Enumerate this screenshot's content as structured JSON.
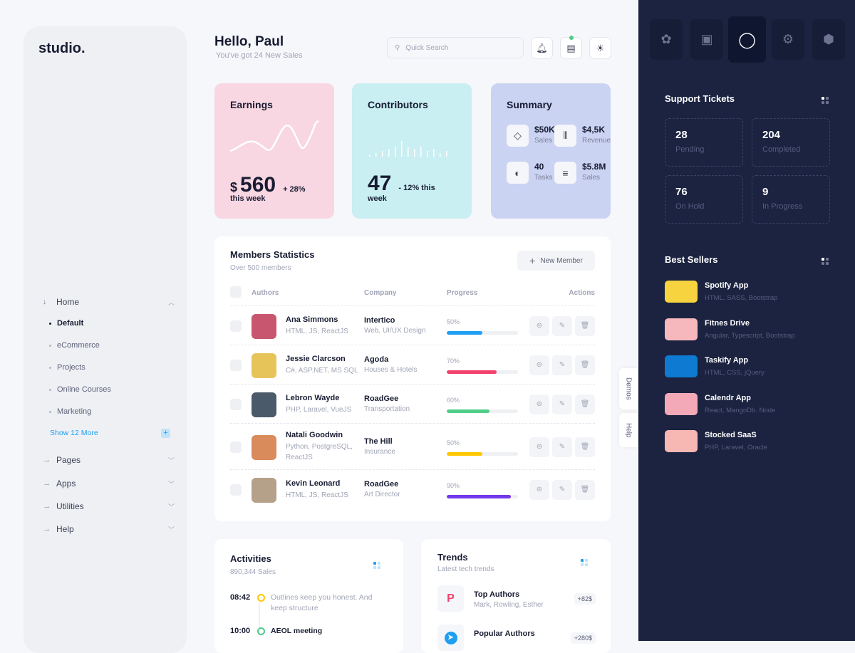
{
  "brand": "studio.",
  "sidebar": {
    "home": "Home",
    "sub": [
      "Default",
      "eCommerce",
      "Projects",
      "Online Courses",
      "Marketing"
    ],
    "show_more": "Show 12 More",
    "items": [
      "Pages",
      "Apps",
      "Utilities",
      "Help"
    ]
  },
  "header": {
    "greeting": "Hello, Paul",
    "subtitle": "You've got 24 New Sales",
    "search_placeholder": "Quick Search"
  },
  "earnings": {
    "title": "Earnings",
    "currency": "$",
    "value": "560",
    "change": "+ 28%",
    "period": "this week"
  },
  "contributors": {
    "title": "Contributors",
    "value": "47",
    "change": "- 12% this",
    "period": "week"
  },
  "summary": {
    "title": "Summary",
    "items": [
      {
        "value": "$50K",
        "label": "Sales"
      },
      {
        "value": "$4,5K",
        "label": "Revenue"
      },
      {
        "value": "40",
        "label": "Tasks"
      },
      {
        "value": "$5.8M",
        "label": "Sales"
      }
    ]
  },
  "members": {
    "title": "Members Statistics",
    "subtitle": "Over 500 members",
    "new_button": "New Member",
    "columns": [
      "Authors",
      "Company",
      "Progress",
      "Actions"
    ],
    "rows": [
      {
        "name": "Ana Simmons",
        "skills": "HTML, JS, ReactJS",
        "company": "Intertico",
        "company_sub": "Web, UI/UX Design",
        "progress": "50%",
        "value": 50,
        "color": "#1e9ff2"
      },
      {
        "name": "Jessie Clarcson",
        "skills": "C#, ASP.NET, MS SQL",
        "company": "Agoda",
        "company_sub": "Houses & Hotels",
        "progress": "70%",
        "value": 70,
        "color": "#f1416c"
      },
      {
        "name": "Lebron Wayde",
        "skills": "PHP, Laravel, VueJS",
        "company": "RoadGee",
        "company_sub": "Transportation",
        "progress": "60%",
        "value": 60,
        "color": "#50cd89"
      },
      {
        "name": "Natali Goodwin",
        "skills": "Python, PostgreSQL, ReactJS",
        "company": "The Hill",
        "company_sub": "Insurance",
        "progress": "50%",
        "value": 50,
        "color": "#ffc700"
      },
      {
        "name": "Kevin Leonard",
        "skills": "HTML, JS, ReactJS",
        "company": "RoadGee",
        "company_sub": "Art Director",
        "progress": "90%",
        "value": 90,
        "color": "#7239ea"
      }
    ]
  },
  "activities": {
    "title": "Activities",
    "subtitle": "890,344 Sales",
    "items": [
      {
        "time": "08:42",
        "text": "Outlines keep you honest. And keep structure",
        "color": "#ffc700"
      },
      {
        "time": "10:00",
        "text": "AEOL meeting",
        "color": "#50cd89"
      }
    ]
  },
  "trends": {
    "title": "Trends",
    "subtitle": "Latest tech trends",
    "items": [
      {
        "title": "Top Authors",
        "sub": "Mark, Rowling, Esther",
        "badge": "+82$"
      },
      {
        "title": "Popular Authors",
        "sub": "",
        "badge": "+280$"
      }
    ]
  },
  "side_tabs": [
    "Demos",
    "Help"
  ],
  "support": {
    "title": "Support Tickets",
    "tickets": [
      {
        "value": "28",
        "label": "Pending"
      },
      {
        "value": "204",
        "label": "Completed"
      },
      {
        "value": "76",
        "label": "On Hold"
      },
      {
        "value": "9",
        "label": "In Progress"
      }
    ]
  },
  "best_sellers": {
    "title": "Best Sellers",
    "items": [
      {
        "name": "Spotify App",
        "tech": "HTML, SASS, Bootstrap",
        "color": "#f6d33f"
      },
      {
        "name": "Fitnes Drive",
        "tech": "Angular, Typescript, Bootstrap",
        "color": "#f6b8bd"
      },
      {
        "name": "Taskify App",
        "tech": "HTML, CSS, jQuery",
        "color": "#0e7ad1"
      },
      {
        "name": "Calendr App",
        "tech": "React, MangoDb. Node",
        "color": "#f4a9b8"
      },
      {
        "name": "Stocked SaaS",
        "tech": "PHP, Laravel, Oracle",
        "color": "#f7b7b3"
      }
    ]
  },
  "colors": {
    "dark_panel": "#1b2340",
    "earnings": "#f8d7e2",
    "contributors": "#c9eff2",
    "summary": "#cbd3f3"
  }
}
